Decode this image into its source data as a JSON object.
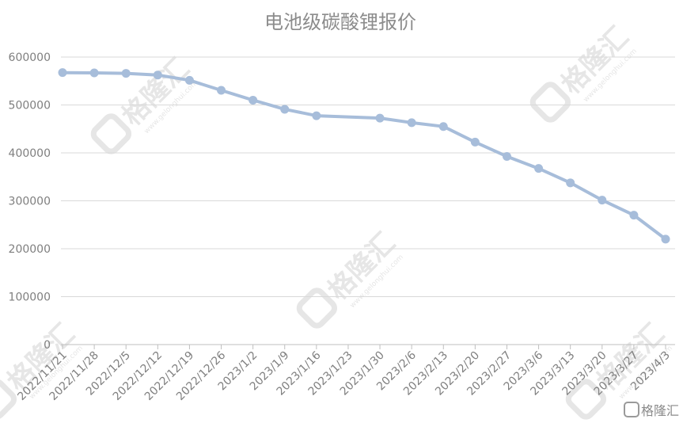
{
  "chart_data": {
    "type": "line",
    "title": "电池级碳酸锂报价",
    "xlabel": "",
    "ylabel": "",
    "ylim": [
      0,
      600000
    ],
    "yticks": [
      0,
      100000,
      200000,
      300000,
      400000,
      500000,
      600000
    ],
    "ytick_labels": [
      "0",
      "100000",
      "200000",
      "300000",
      "400000",
      "500000",
      "600000"
    ],
    "categories": [
      "2022/11/21",
      "2022/11/28",
      "2022/12/5",
      "2022/12/12",
      "2022/12/19",
      "2022/12/26",
      "2023/1/2",
      "2023/1/9",
      "2023/1/16",
      "2023/1/23",
      "2023/1/30",
      "2023/2/6",
      "2023/2/13",
      "2023/2/20",
      "2023/2/27",
      "2023/3/6",
      "2023/3/13",
      "2023/3/20",
      "2023/3/27",
      "2023/4/3"
    ],
    "series": [
      {
        "values": [
          567500,
          567000,
          566000,
          562500,
          551500,
          530500,
          510000,
          491000,
          477500,
          null,
          472500,
          463000,
          455000,
          422500,
          392500,
          367500,
          337500,
          301500,
          270000,
          220000
        ]
      }
    ],
    "grid": true,
    "legend": "none"
  },
  "colors": {
    "line": "#a7bdda",
    "marker": "#a7bdda",
    "grid": "#d9d9d9",
    "axis": "#bfbfbf",
    "text": "#7f7f7f",
    "title": "#8c8c8c",
    "watermark": "#e6e6e6"
  },
  "watermarks": [
    "格隆汇",
    "格隆汇",
    "格隆汇",
    "格隆汇",
    "格隆汇"
  ],
  "watermark_url": "www.gelonghui.com",
  "brand_logo": {
    "icon": "gelonghui-logo-icon",
    "text": "格隆汇"
  }
}
